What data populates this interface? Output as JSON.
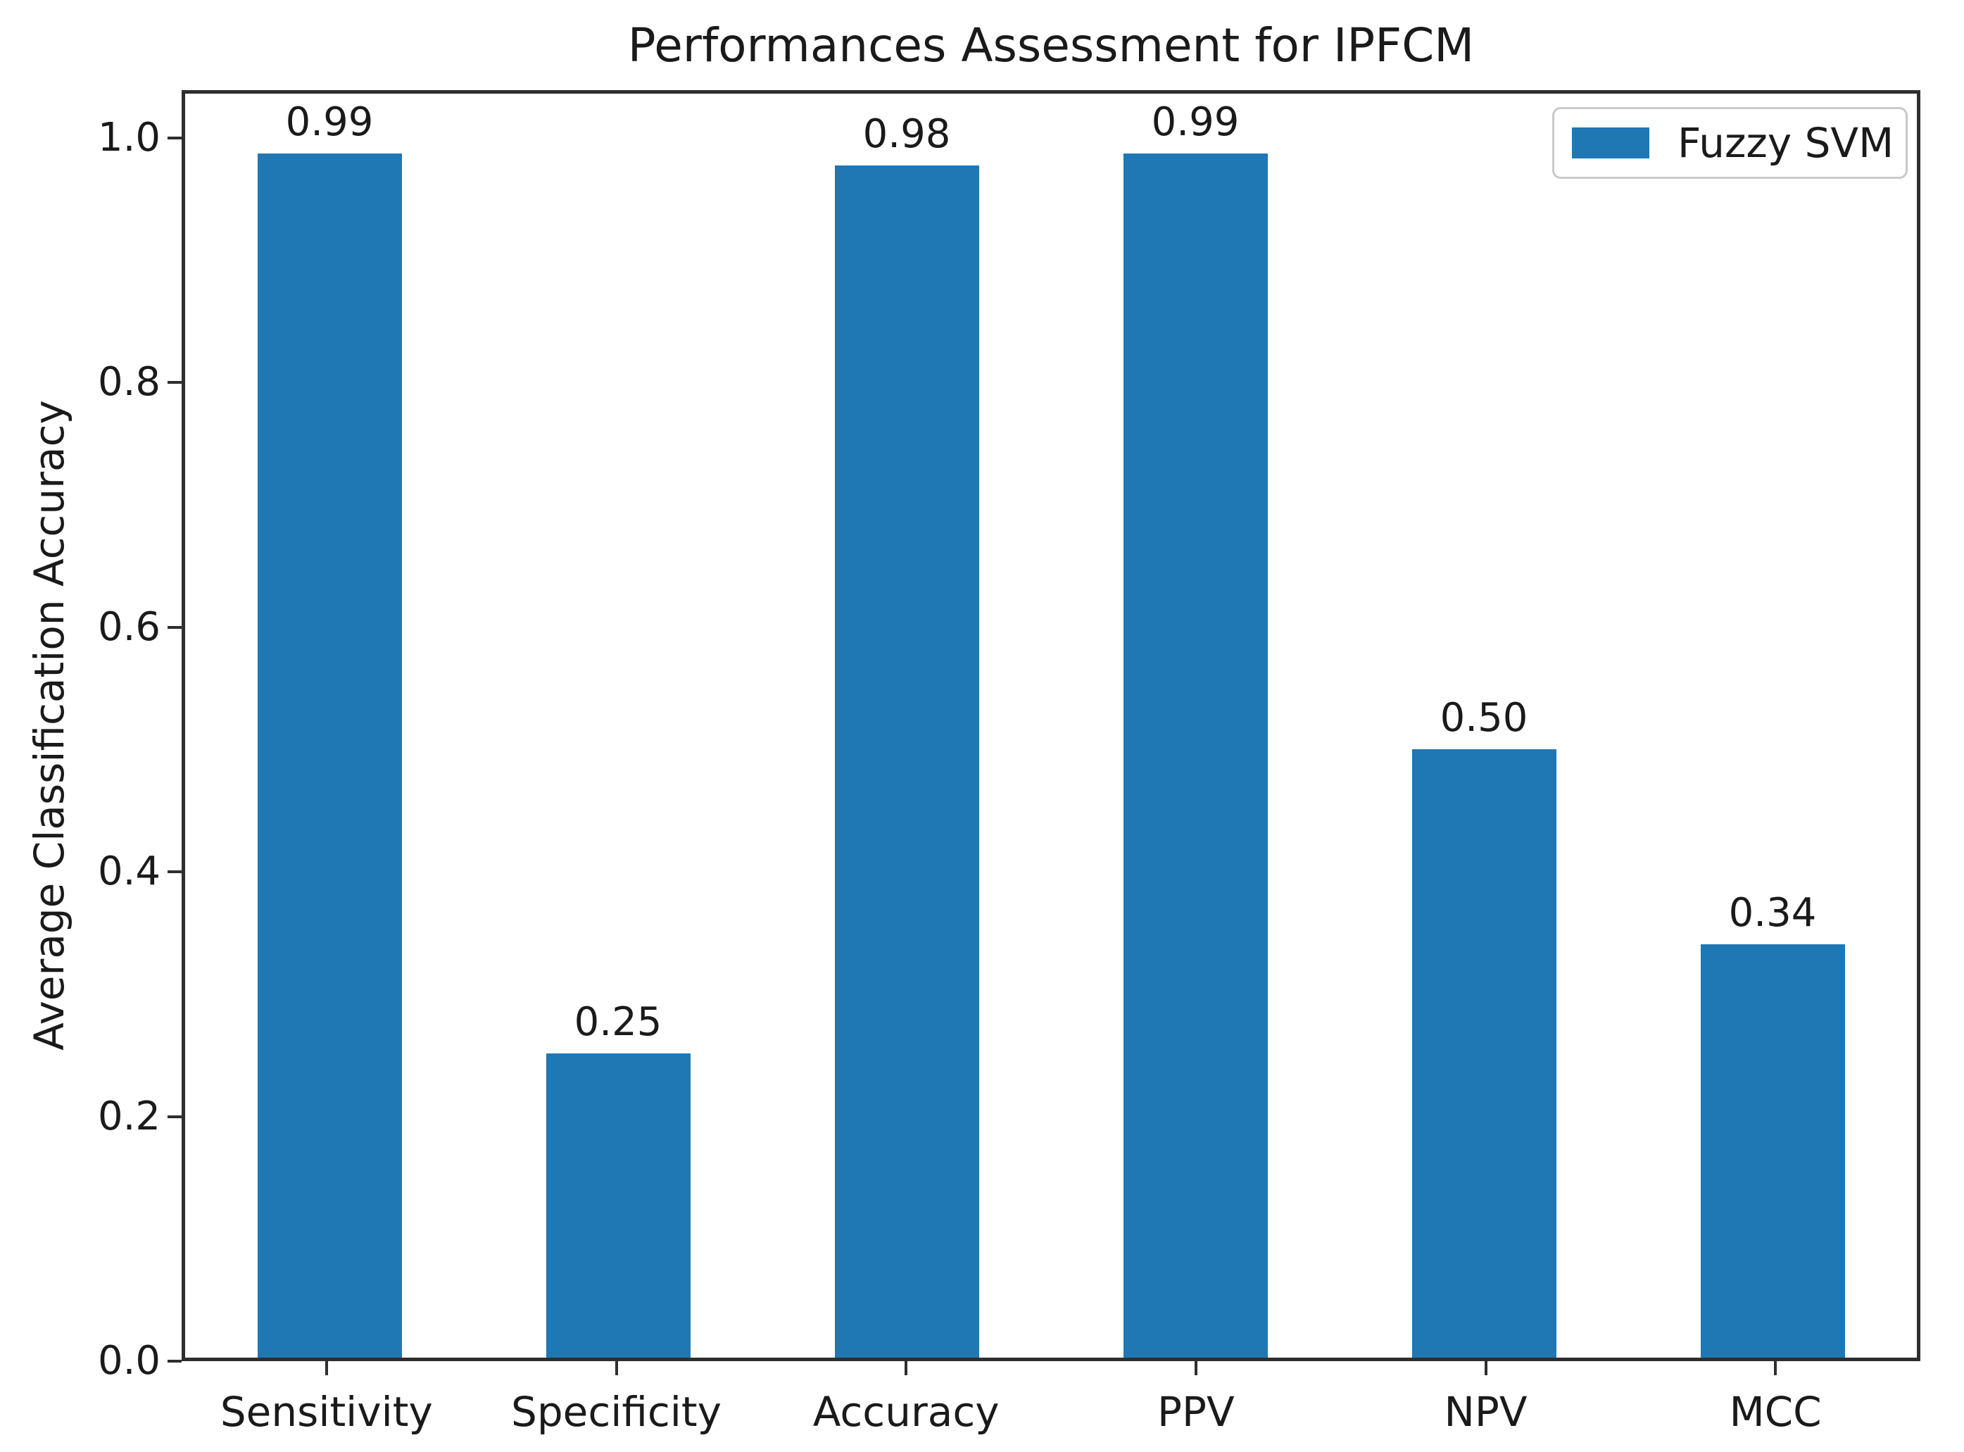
{
  "chart_data": {
    "type": "bar",
    "title": "Performances Assessment for IPFCM",
    "xlabel": "",
    "ylabel": "Average Classification Accuracy",
    "categories": [
      "Sensitivity",
      "Specificity",
      "Accuracy",
      "PPV",
      "NPV",
      "MCC"
    ],
    "values": [
      0.99,
      0.25,
      0.98,
      0.99,
      0.5,
      0.34
    ],
    "value_labels": [
      "0.99",
      "0.25",
      "0.98",
      "0.99",
      "0.50",
      "0.34"
    ],
    "series": [
      {
        "name": "Fuzzy SVM",
        "values": [
          0.99,
          0.25,
          0.98,
          0.99,
          0.5,
          0.34
        ]
      }
    ],
    "yticks": [
      "0.0",
      "0.2",
      "0.4",
      "0.6",
      "0.8",
      "1.0"
    ],
    "ylim": [
      0,
      1.039
    ],
    "grid": false,
    "bar_color": "#1f77b4",
    "bar_width_fraction": 0.5,
    "legend": {
      "position": "upper right",
      "entries": [
        "Fuzzy SVM"
      ]
    }
  }
}
